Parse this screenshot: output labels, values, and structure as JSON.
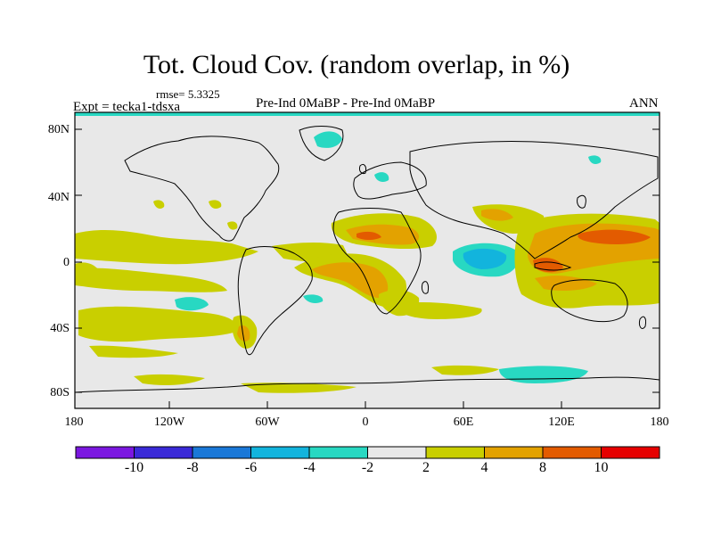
{
  "title": "Tot. Cloud Cov. (random overlap, in %)",
  "rmse_label": "rmse= 5.3325",
  "expt_label": "Expt = tecka1-tdsxa",
  "comparison_label": "Pre-Ind 0MaBP - Pre-Ind    0MaBP",
  "season_label": "ANN",
  "lat_ticks": [
    "80N",
    "40N",
    "0",
    "40S",
    "80S"
  ],
  "lon_ticks": [
    "180",
    "120W",
    "60W",
    "0",
    "60E",
    "120E",
    "180"
  ],
  "colorbar": {
    "colors": [
      "#7b17e0",
      "#3a2ad8",
      "#1a78d8",
      "#12b4dd",
      "#28d8c2",
      "#e8e8e8",
      "#c9cf00",
      "#e3a200",
      "#e35b00",
      "#e60000"
    ],
    "labels": [
      "-10",
      "-8",
      "-6",
      "-4",
      "-2",
      "2",
      "4",
      "8",
      "10"
    ]
  },
  "field_colors": {
    "land": "#e8e8e8",
    "coast": "#000000",
    "pos_weak": "#c9cf00",
    "pos_mid": "#e3a200",
    "pos_strong": "#e35b00",
    "neg_weak": "#28d8c2",
    "neg_mid": "#12b4dd"
  }
}
